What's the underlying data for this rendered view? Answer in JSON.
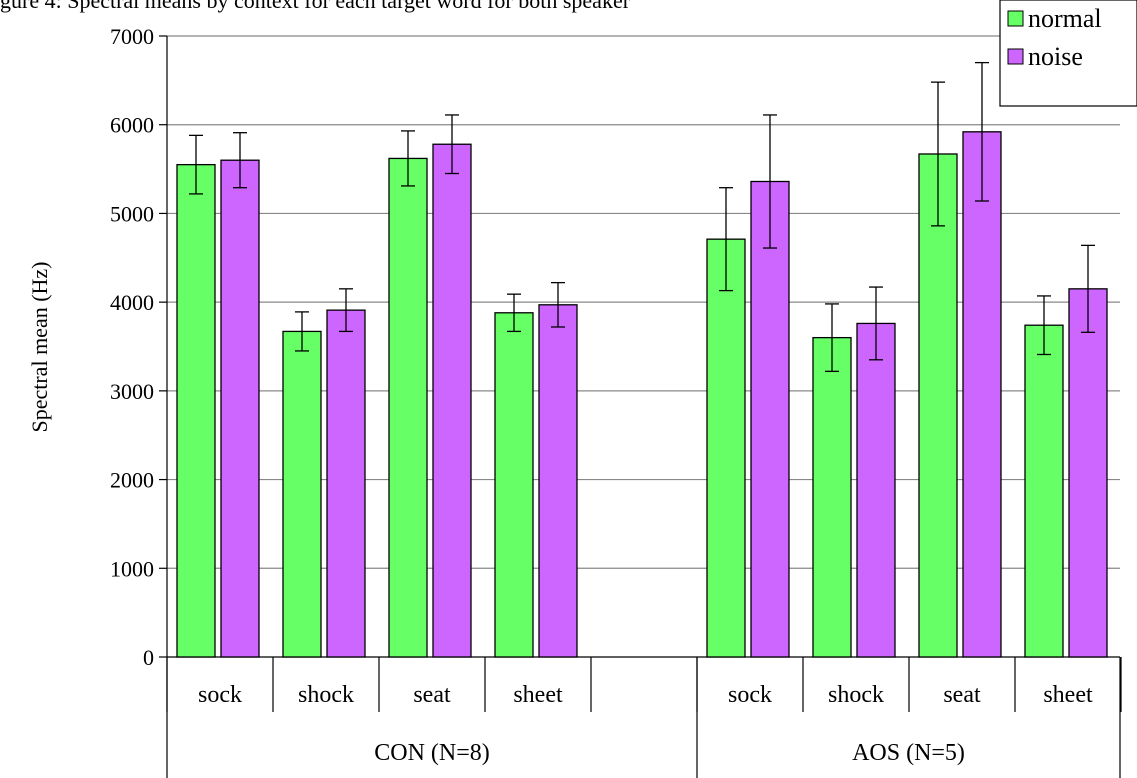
{
  "caption": "gure 4: Spectral means by context for each target word for both speaker",
  "chart_data": {
    "type": "bar",
    "ylabel": "Spectral mean (Hz)",
    "ylim": [
      0,
      7000
    ],
    "yticks": [
      0,
      1000,
      2000,
      3000,
      4000,
      5000,
      6000,
      7000
    ],
    "grid": true,
    "legend_position": "top-right",
    "groups": [
      {
        "label": "CON (N=8)",
        "categories": [
          "sock",
          "shock",
          "seat",
          "sheet",
          ""
        ],
        "series": [
          {
            "name": "normal",
            "values": [
              5550,
              3670,
              5620,
              3880,
              null
            ],
            "error": [
              330,
              220,
              310,
              210,
              null
            ]
          },
          {
            "name": "noise",
            "values": [
              5600,
              3910,
              5780,
              3970,
              null
            ],
            "error": [
              310,
              240,
              330,
              250,
              null
            ]
          }
        ]
      },
      {
        "label": "AOS (N=5)",
        "categories": [
          "sock",
          "shock",
          "seat",
          "sheet"
        ],
        "series": [
          {
            "name": "normal",
            "values": [
              4710,
              3600,
              5670,
              3740
            ],
            "error": [
              580,
              380,
              810,
              330
            ]
          },
          {
            "name": "noise",
            "values": [
              5360,
              3760,
              5920,
              4150
            ],
            "error": [
              750,
              410,
              780,
              490
            ]
          }
        ]
      }
    ]
  },
  "colors": {
    "normal": "#66ff66",
    "noise": "#cc66ff",
    "grid": "#888888",
    "axis": "#000000"
  }
}
